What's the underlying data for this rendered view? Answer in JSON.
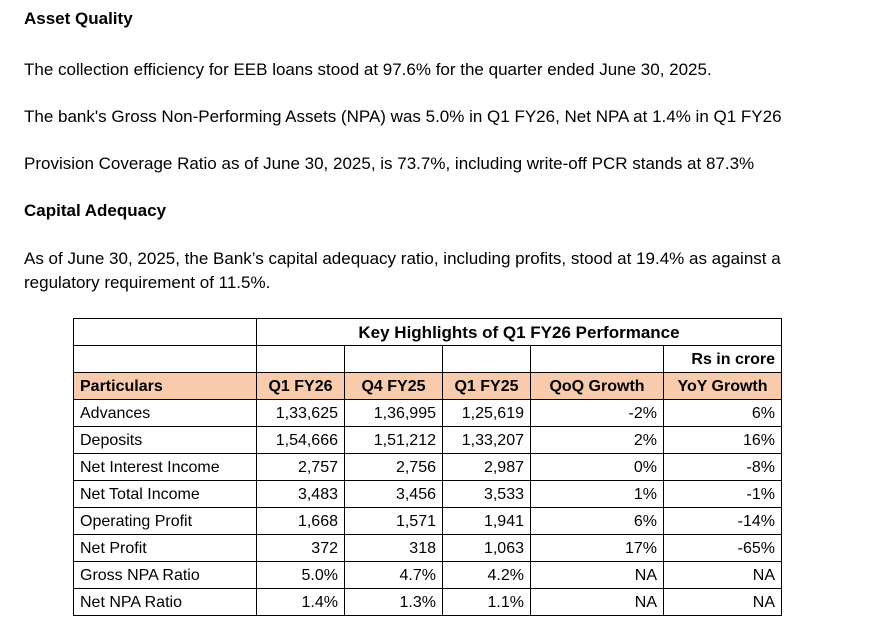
{
  "asset_quality": {
    "heading": "Asset Quality",
    "para1": "The collection efficiency for EEB loans stood at 97.6% for the quarter ended June 30, 2025.",
    "para2": "The bank's Gross Non-Performing Assets (NPA) was 5.0% in Q1 FY26, Net NPA at 1.4% in Q1 FY26",
    "para3": "Provision Coverage Ratio as of June 30, 2025, is 73.7%, including write-off PCR stands at 87.3%"
  },
  "capital_adequacy": {
    "heading": "Capital Adequacy",
    "para": "As of June 30, 2025, the Bank’s capital adequacy ratio, including profits, stood at 19.4% as against a regulatory requirement of 11.5%."
  },
  "table": {
    "title": "Key Highlights of Q1 FY26 Performance",
    "unit": "Rs in crore",
    "header_color": "#f8cbad",
    "columns": [
      "Particulars",
      "Q1 FY26",
      "Q4 FY25",
      "Q1 FY25",
      "QoQ Growth",
      "YoY Growth"
    ],
    "rows": [
      [
        "Advances",
        "1,33,625",
        "1,36,995",
        "1,25,619",
        "-2%",
        "6%"
      ],
      [
        "Deposits",
        "1,54,666",
        "1,51,212",
        "1,33,207",
        "2%",
        "16%"
      ],
      [
        "Net Interest Income",
        "2,757",
        "2,756",
        "2,987",
        "0%",
        "-8%"
      ],
      [
        "Net Total Income",
        "3,483",
        "3,456",
        "3,533",
        "1%",
        "-1%"
      ],
      [
        "Operating Profit",
        "1,668",
        "1,571",
        "1,941",
        "6%",
        "-14%"
      ],
      [
        "Net Profit",
        "372",
        "318",
        "1,063",
        "17%",
        "-65%"
      ],
      [
        "Gross NPA Ratio",
        "5.0%",
        "4.7%",
        "4.2%",
        "NA",
        "NA"
      ],
      [
        "Net NPA Ratio",
        "1.4%",
        "1.3%",
        "1.1%",
        "NA",
        "NA"
      ]
    ]
  }
}
